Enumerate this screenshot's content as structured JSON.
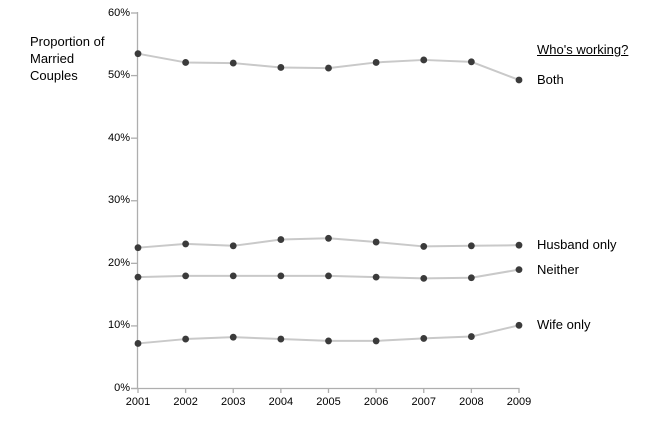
{
  "chart_data": {
    "type": "line",
    "title": "Proportion of Married Couples",
    "ylabel_lines": [
      "Proportion of",
      "Married",
      "Couples"
    ],
    "legend_title": "Who's working?",
    "legend_position": "right",
    "grid": false,
    "categories": [
      "2001",
      "2002",
      "2003",
      "2004",
      "2005",
      "2006",
      "2007",
      "2008",
      "2009"
    ],
    "series": [
      {
        "name": "Both",
        "values": [
          53.5,
          52.1,
          52.0,
          51.3,
          51.2,
          52.1,
          52.5,
          52.2,
          49.3
        ]
      },
      {
        "name": "Husband only",
        "values": [
          22.5,
          23.1,
          22.8,
          23.8,
          24.0,
          23.4,
          22.7,
          22.8,
          22.9
        ]
      },
      {
        "name": "Neither",
        "values": [
          17.8,
          18.0,
          18.0,
          18.0,
          18.0,
          17.8,
          17.6,
          17.7,
          19.0
        ]
      },
      {
        "name": "Wife only",
        "values": [
          7.2,
          7.9,
          8.2,
          7.9,
          7.6,
          7.6,
          8.0,
          8.3,
          10.1
        ]
      }
    ],
    "ylim": [
      0,
      60
    ],
    "yticks": [
      {
        "value": 0,
        "label": "0%"
      },
      {
        "value": 10,
        "label": "10%"
      },
      {
        "value": 20,
        "label": "20%"
      },
      {
        "value": 30,
        "label": "30%"
      },
      {
        "value": 40,
        "label": "40%"
      },
      {
        "value": 50,
        "label": "50%"
      },
      {
        "value": 60,
        "label": "60%"
      }
    ],
    "colors": {
      "point": "#3b3b3b",
      "line": "#c9c9c9",
      "axis": "#aeaeae",
      "text": "#000000"
    }
  }
}
